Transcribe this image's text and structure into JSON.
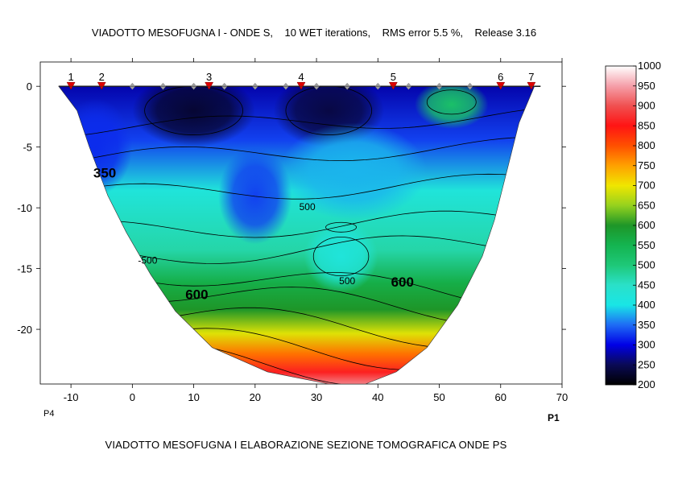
{
  "header": {
    "title": "VIADOTTO MESOFUGNA I - ONDE S,    10 WET iterations,    RMS error 5.5 %,    Release 3.16"
  },
  "footer": {
    "caption": "VIADOTTO MESOFUGNA I ELABORAZIONE SEZIONE TOMOGRAFICA ONDE PS"
  },
  "chart_data": {
    "type": "heatmap",
    "xlim": [
      -15,
      70
    ],
    "ylim": [
      -24.5,
      2
    ],
    "x_ticks": [
      -10,
      0,
      10,
      20,
      30,
      40,
      50,
      60,
      70
    ],
    "y_ticks": [
      0,
      -5,
      -10,
      -15,
      -20
    ],
    "x_tick_labels": [
      "-10",
      "0",
      "10",
      "20",
      "30",
      "40",
      "50",
      "60",
      "70"
    ],
    "y_tick_labels": [
      "0",
      "-5",
      "-10",
      "-15",
      "-20"
    ],
    "grid": false,
    "endpoint_labels": {
      "left": "P4",
      "right": "P1"
    },
    "shots": [
      {
        "label": "1",
        "x": -10
      },
      {
        "label": "2",
        "x": -5
      },
      {
        "label": "3",
        "x": 12.5
      },
      {
        "label": "4",
        "x": 27.5
      },
      {
        "label": "5",
        "x": 42.5
      },
      {
        "label": "6",
        "x": 60
      },
      {
        "label": "7",
        "x": 65
      }
    ],
    "geophones_x": [
      0,
      5,
      10,
      15,
      20,
      25,
      30,
      35,
      40,
      45,
      50,
      55
    ],
    "section_outline": [
      [
        -12,
        0
      ],
      [
        65.5,
        0
      ],
      [
        63,
        -3
      ],
      [
        61,
        -7
      ],
      [
        59,
        -11
      ],
      [
        57,
        -14
      ],
      [
        53,
        -18
      ],
      [
        48,
        -21.5
      ],
      [
        43,
        -23.5
      ],
      [
        38,
        -24.5
      ],
      [
        32,
        -24.5
      ],
      [
        22,
        -23.5
      ],
      [
        13,
        -21.5
      ],
      [
        7,
        -18.5
      ],
      [
        3,
        -15.5
      ],
      [
        -1,
        -12
      ],
      [
        -4,
        -9
      ],
      [
        -7,
        -5
      ],
      [
        -9,
        -2
      ]
    ],
    "contour_labels": [
      {
        "text": "350",
        "x": -4.5,
        "y": -7.5,
        "bold": true
      },
      {
        "text": "500",
        "x": 28.5,
        "y": -10.2,
        "bold": false
      },
      {
        "text": "-500",
        "x": 2.5,
        "y": -14.6,
        "bold": false
      },
      {
        "text": "500",
        "x": 35,
        "y": -16.3,
        "bold": false
      },
      {
        "text": "600",
        "x": 10.5,
        "y": -17.5,
        "bold": true
      },
      {
        "text": "600",
        "x": 44,
        "y": -16.5,
        "bold": true
      }
    ],
    "colorbar": {
      "min": 200,
      "max": 1000,
      "ticks": [
        1000,
        950,
        900,
        850,
        800,
        750,
        700,
        650,
        600,
        550,
        500,
        450,
        400,
        350,
        300,
        250,
        200
      ],
      "tick_labels": [
        "1000",
        "950",
        "900",
        "850",
        "800",
        "750",
        "700",
        "650",
        "600",
        "550",
        "500",
        "450",
        "400",
        "350",
        "300",
        "250",
        "200"
      ],
      "stops": [
        {
          "v": 200,
          "color": "#000000"
        },
        {
          "v": 250,
          "color": "#0a0a55"
        },
        {
          "v": 300,
          "color": "#0000e6"
        },
        {
          "v": 350,
          "color": "#1e6cf5"
        },
        {
          "v": 400,
          "color": "#19e6e6"
        },
        {
          "v": 450,
          "color": "#2ae0c8"
        },
        {
          "v": 500,
          "color": "#1ec878"
        },
        {
          "v": 550,
          "color": "#14b450"
        },
        {
          "v": 600,
          "color": "#1e9628"
        },
        {
          "v": 650,
          "color": "#96d21e"
        },
        {
          "v": 700,
          "color": "#f0e600"
        },
        {
          "v": 750,
          "color": "#ffa000"
        },
        {
          "v": 800,
          "color": "#ff5000"
        },
        {
          "v": 850,
          "color": "#ff1414"
        },
        {
          "v": 900,
          "color": "#f05050"
        },
        {
          "v": 950,
          "color": "#f5a0aa"
        },
        {
          "v": 1000,
          "color": "#ffffff"
        }
      ]
    },
    "velocity_anomalies": [
      {
        "x": -6,
        "y": -5,
        "v": 320,
        "rx": 6,
        "ry": 4
      },
      {
        "x": 10,
        "y": -2,
        "v": 230,
        "rx": 10,
        "ry": 3
      },
      {
        "x": 32,
        "y": -2,
        "v": 240,
        "rx": 9,
        "ry": 3
      },
      {
        "x": 52,
        "y": -1.5,
        "v": 520,
        "rx": 6,
        "ry": 2
      },
      {
        "x": 20,
        "y": -9,
        "v": 330,
        "rx": 6,
        "ry": 4
      },
      {
        "x": 36,
        "y": -7,
        "v": 380,
        "rx": 12,
        "ry": 4
      },
      {
        "x": 34,
        "y": -14,
        "v": 420,
        "rx": 6,
        "ry": 3
      }
    ]
  }
}
